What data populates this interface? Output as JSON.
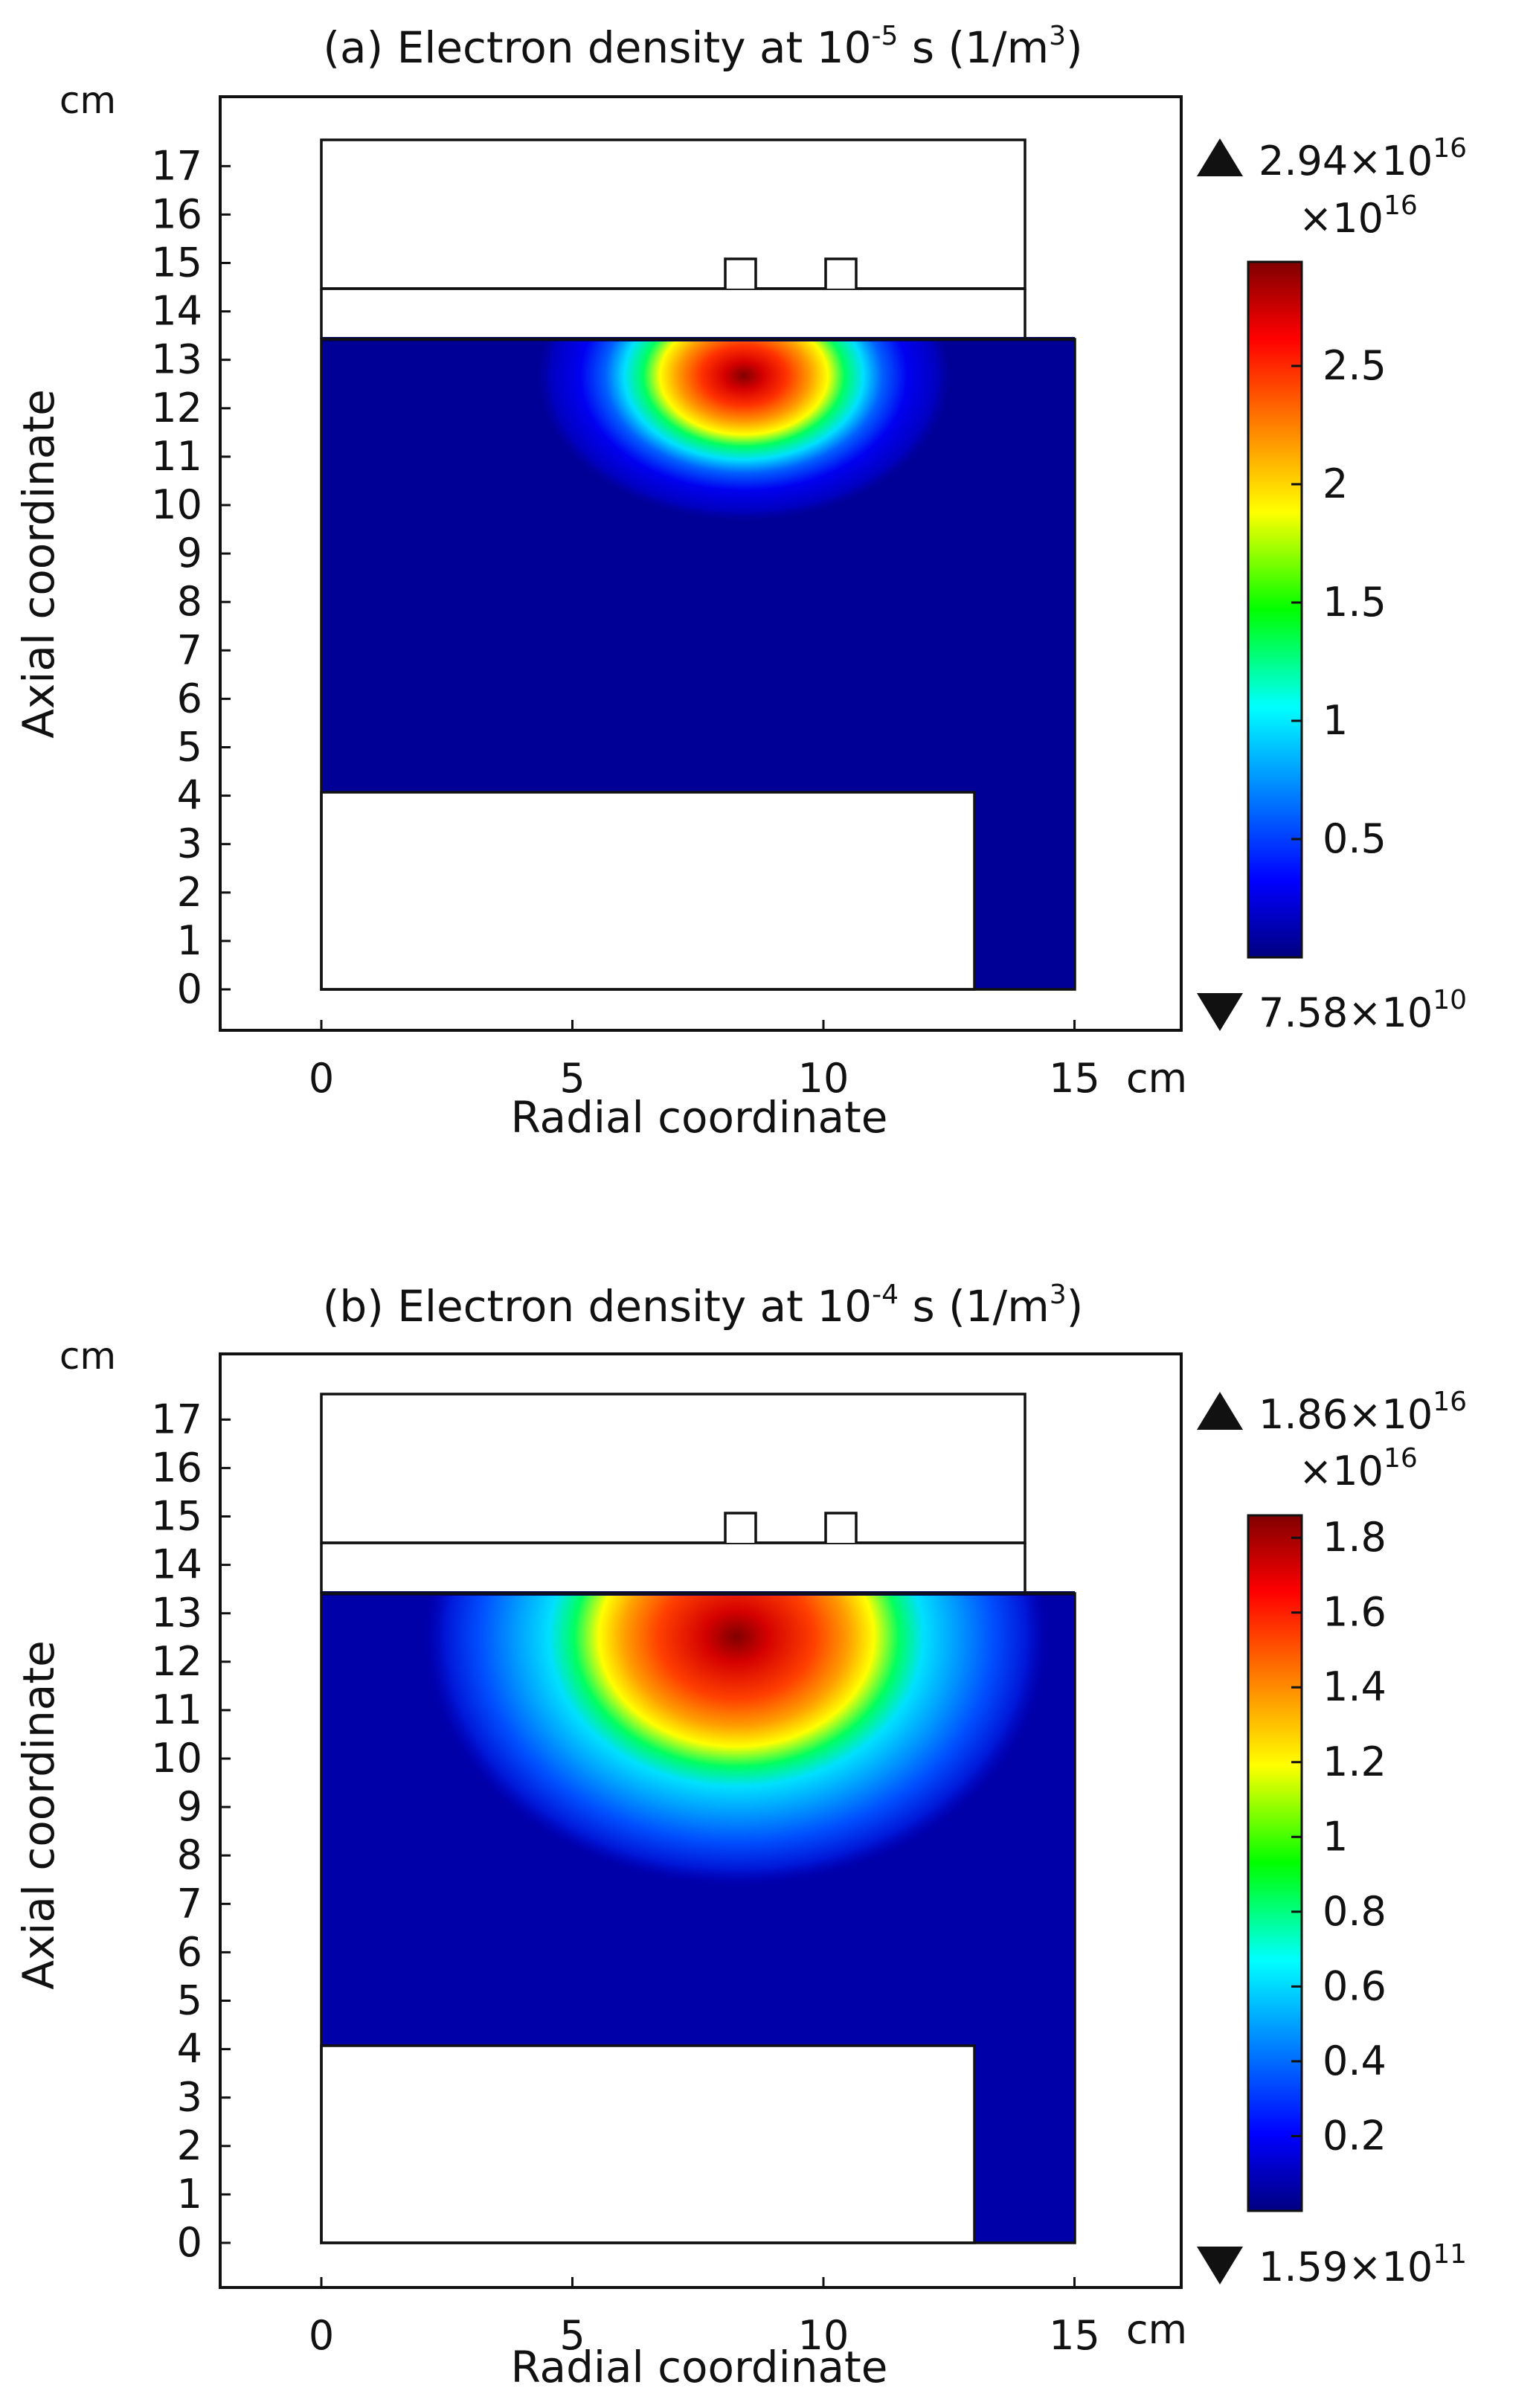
{
  "chart_data": [
    {
      "type": "heatmap",
      "title_prefix": "(a) Electron density at 10",
      "title_exponent": "-5",
      "title_middle": " s (1/m",
      "title_unit_exponent": "3",
      "title_suffix": ")",
      "xlabel": "Radial coordinate",
      "ylabel": "Axial coordinate",
      "x_unit": "cm",
      "y_unit": "cm",
      "xlim": [
        -2,
        17
      ],
      "ylim": [
        -0.9,
        17.9
      ],
      "x_ticks": [
        "0",
        "5",
        "10",
        "15"
      ],
      "y_ticks": [
        "0",
        "1",
        "2",
        "3",
        "4",
        "5",
        "6",
        "7",
        "8",
        "9",
        "10",
        "11",
        "12",
        "13",
        "14",
        "15",
        "16",
        "17"
      ],
      "peak_location": {
        "r": 8.3,
        "z": 12.2
      },
      "colorbar": {
        "max_label": "2.94×10",
        "max_exponent": "16",
        "min_label": "7.58×10",
        "min_exponent": "10",
        "scale_label": "×10",
        "scale_exponent": "16",
        "range": [
          0,
          2.94
        ],
        "ticks": [
          "0.5",
          "1",
          "1.5",
          "2",
          "2.5"
        ]
      }
    },
    {
      "type": "heatmap",
      "title_prefix": "(b) Electron density at 10",
      "title_exponent": "-4",
      "title_middle": " s (1/m",
      "title_unit_exponent": "3",
      "title_suffix": ")",
      "xlabel": "Radial coordinate",
      "ylabel": "Axial coordinate",
      "x_unit": "cm",
      "y_unit": "cm",
      "xlim": [
        -2,
        17
      ],
      "ylim": [
        -0.9,
        17.9
      ],
      "x_ticks": [
        "0",
        "5",
        "10",
        "15"
      ],
      "y_ticks": [
        "0",
        "1",
        "2",
        "3",
        "4",
        "5",
        "6",
        "7",
        "8",
        "9",
        "10",
        "11",
        "12",
        "13",
        "14",
        "15",
        "16",
        "17"
      ],
      "peak_location": {
        "r": 8.2,
        "z": 12.1
      },
      "colorbar": {
        "max_label": "1.86×10",
        "max_exponent": "16",
        "min_label": "1.59×10",
        "min_exponent": "11",
        "scale_label": "×10",
        "scale_exponent": "16",
        "range": [
          0,
          1.86
        ],
        "ticks": [
          "0.2",
          "0.4",
          "0.6",
          "0.8",
          "1",
          "1.2",
          "1.4",
          "1.6",
          "1.8"
        ]
      }
    }
  ],
  "colors": {
    "axes": "#111111",
    "background": "#ffffff",
    "colormap": [
      "#000080",
      "#0000ff",
      "#00ffff",
      "#00ff00",
      "#ffff00",
      "#ff0000",
      "#800000"
    ]
  }
}
